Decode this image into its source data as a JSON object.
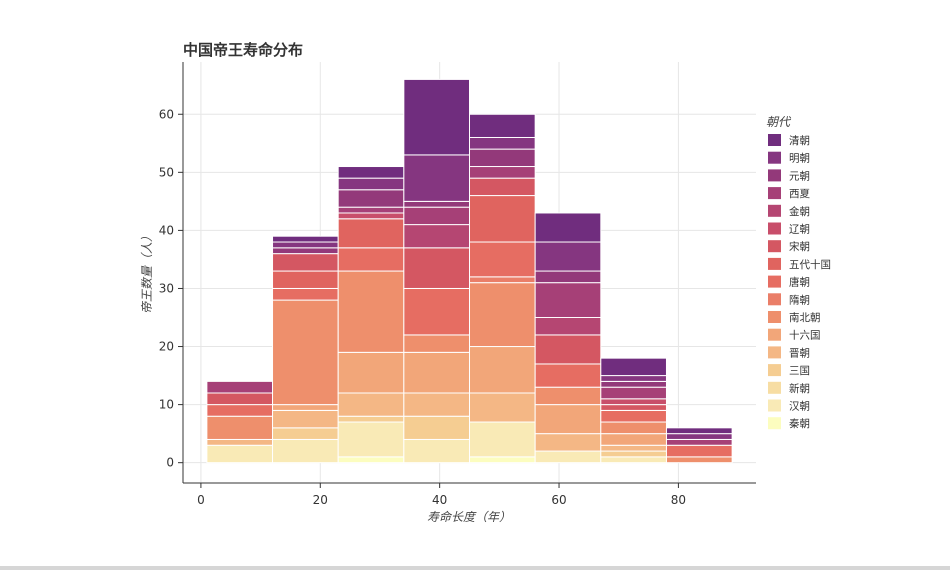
{
  "chart_data": {
    "type": "bar",
    "title": "中国帝王寿命分布",
    "xlabel": "寿命长度（年）",
    "ylabel": "帝王数量（人）",
    "xlim": [
      -3,
      93
    ],
    "ylim": [
      -3.5,
      69
    ],
    "xticks": [
      0,
      20,
      40,
      60,
      80
    ],
    "yticks": [
      0,
      10,
      20,
      30,
      40,
      50,
      60
    ],
    "grid": true,
    "legend_title": "朝代",
    "legend_position": "right",
    "bin_edges": [
      1,
      12,
      23,
      34,
      45,
      56,
      67,
      78,
      89
    ],
    "series": [
      {
        "name": "秦朝",
        "color": "#fcfdbf",
        "values": [
          0,
          0,
          1,
          0,
          1,
          0,
          0,
          0
        ]
      },
      {
        "name": "汉朝",
        "color": "#f9eab6",
        "values": [
          3,
          4,
          6,
          4,
          6,
          2,
          1,
          0
        ]
      },
      {
        "name": "新朝",
        "color": "#f7dda3",
        "values": [
          0,
          0,
          0,
          0,
          0,
          0,
          0,
          0
        ]
      },
      {
        "name": "三国",
        "color": "#f5cd92",
        "values": [
          0,
          2,
          1,
          4,
          0,
          0,
          1,
          0
        ]
      },
      {
        "name": "晋朝",
        "color": "#f4b785",
        "values": [
          1,
          3,
          4,
          4,
          5,
          3,
          1,
          0
        ]
      },
      {
        "name": "十六国",
        "color": "#f2a679",
        "values": [
          0,
          1,
          7,
          7,
          8,
          5,
          2,
          0
        ]
      },
      {
        "name": "南北朝",
        "color": "#ee8f6c",
        "values": [
          4,
          18,
          14,
          3,
          11,
          3,
          2,
          1
        ]
      },
      {
        "name": "隋朝",
        "color": "#ea7e68",
        "values": [
          0,
          0,
          0,
          0,
          1,
          0,
          0,
          0
        ]
      },
      {
        "name": "唐朝",
        "color": "#e66d62",
        "values": [
          2,
          2,
          4,
          8,
          6,
          4,
          2,
          2
        ]
      },
      {
        "name": "五代十国",
        "color": "#e0645f",
        "values": [
          0,
          3,
          5,
          0,
          8,
          0,
          0,
          0
        ]
      },
      {
        "name": "宋朝",
        "color": "#d45762",
        "values": [
          2,
          3,
          0,
          7,
          3,
          5,
          1,
          0
        ]
      },
      {
        "name": "辽朝",
        "color": "#c84e6a",
        "values": [
          0,
          0,
          1,
          0,
          0,
          0,
          1,
          0
        ]
      },
      {
        "name": "金朝",
        "color": "#b54672",
        "values": [
          0,
          0,
          0,
          4,
          0,
          3,
          0,
          0
        ]
      },
      {
        "name": "西夏",
        "color": "#a64077",
        "values": [
          2,
          0,
          1,
          3,
          2,
          6,
          2,
          1
        ]
      },
      {
        "name": "元朝",
        "color": "#93397a",
        "values": [
          0,
          1,
          3,
          1,
          3,
          2,
          1,
          0
        ]
      },
      {
        "name": "明朝",
        "color": "#853680",
        "values": [
          0,
          1,
          2,
          8,
          2,
          5,
          1,
          1
        ]
      },
      {
        "name": "清朝",
        "color": "#702d7e",
        "values": [
          0,
          1,
          2,
          13,
          4,
          5,
          3,
          1
        ]
      }
    ]
  }
}
